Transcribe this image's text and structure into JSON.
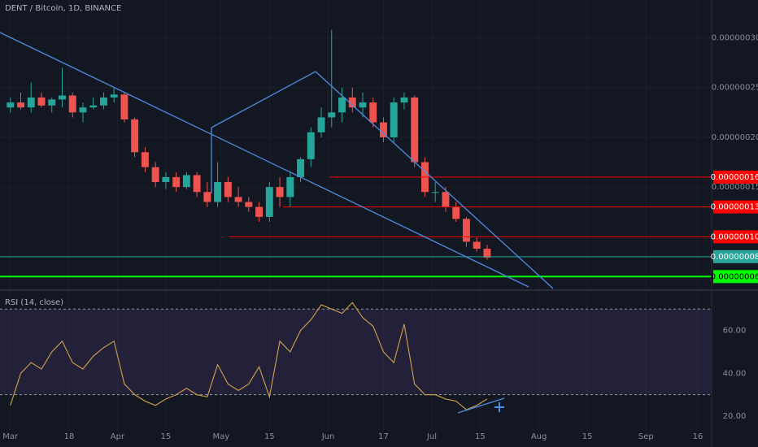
{
  "chart_data": [
    {
      "type": "candlestick",
      "title": "DENT / Bitcoin, 1D, BINANCE",
      "x": [
        "Mar 1",
        "Mar 4",
        "Mar 7",
        "Mar 10",
        "Mar 13",
        "Mar 16",
        "Mar 19",
        "Mar 22",
        "Mar 25",
        "Mar 28",
        "Mar 31",
        "Apr 3",
        "Apr 6",
        "Apr 9",
        "Apr 12",
        "Apr 15",
        "Apr 18",
        "Apr 21",
        "Apr 24",
        "Apr 27",
        "Apr 30",
        "May 3",
        "May 6",
        "May 9",
        "May 12",
        "May 15",
        "May 18",
        "May 21",
        "May 24",
        "May 27",
        "May 30",
        "Jun 2",
        "Jun 5",
        "Jun 8",
        "Jun 11",
        "Jun 14",
        "Jun 17",
        "Jun 20",
        "Jun 23",
        "Jun 26",
        "Jun 29",
        "Jul 2",
        "Jul 5",
        "Jul 8",
        "Jul 11",
        "Jul 14",
        "Jul 17"
      ],
      "open": [
        2.3e-07,
        2.35e-07,
        2.3e-07,
        2.4e-07,
        2.32e-07,
        2.38e-07,
        2.42e-07,
        2.25e-07,
        2.3e-07,
        2.32e-07,
        2.4e-07,
        2.43e-07,
        2.18e-07,
        1.85e-07,
        1.7e-07,
        1.55e-07,
        1.6e-07,
        1.5e-07,
        1.62e-07,
        1.45e-07,
        1.35e-07,
        1.55e-07,
        1.4e-07,
        1.35e-07,
        1.3e-07,
        1.2e-07,
        1.5e-07,
        1.4e-07,
        1.6e-07,
        1.78e-07,
        2.05e-07,
        2.2e-07,
        2.25e-07,
        2.4e-07,
        2.3e-07,
        2.35e-07,
        2.15e-07,
        2e-07,
        2.35e-07,
        2.4e-07,
        1.75e-07,
        1.45e-07,
        1.45e-07,
        1.3e-07,
        1.18e-07,
        9.5e-08,
        8.8e-08
      ],
      "high": [
        2.4e-07,
        2.45e-07,
        2.55e-07,
        2.45e-07,
        2.4e-07,
        2.7e-07,
        2.45e-07,
        2.35e-07,
        2.4e-07,
        2.45e-07,
        2.5e-07,
        2.45e-07,
        2.2e-07,
        1.9e-07,
        1.75e-07,
        1.65e-07,
        1.65e-07,
        1.65e-07,
        1.65e-07,
        1.55e-07,
        1.75e-07,
        1.6e-07,
        1.5e-07,
        1.4e-07,
        1.35e-07,
        1.55e-07,
        1.6e-07,
        1.65e-07,
        1.8e-07,
        2.1e-07,
        2.3e-07,
        3.08e-07,
        2.5e-07,
        2.5e-07,
        2.45e-07,
        2.4e-07,
        2.2e-07,
        2.4e-07,
        2.45e-07,
        2.42e-07,
        1.8e-07,
        1.55e-07,
        1.5e-07,
        1.35e-07,
        1.2e-07,
        1e-07,
        9.2e-08
      ],
      "low": [
        2.25e-07,
        2.28e-07,
        2.25e-07,
        2.3e-07,
        2.25e-07,
        2.3e-07,
        2.2e-07,
        2.15e-07,
        2.28e-07,
        2.28e-07,
        2.35e-07,
        2.15e-07,
        1.8e-07,
        1.65e-07,
        1.5e-07,
        1.48e-07,
        1.45e-07,
        1.48e-07,
        1.4e-07,
        1.3e-07,
        1.3e-07,
        1.35e-07,
        1.3e-07,
        1.25e-07,
        1.15e-07,
        1.15e-07,
        1.3e-07,
        1.3e-07,
        1.55e-07,
        1.7e-07,
        2e-07,
        2.1e-07,
        2.15e-07,
        2.25e-07,
        2.2e-07,
        2.1e-07,
        1.95e-07,
        1.95e-07,
        2.28e-07,
        1.7e-07,
        1.4e-07,
        1.35e-07,
        1.25e-07,
        1.15e-07,
        9e-08,
        8.5e-08,
        7.7e-08
      ],
      "close": [
        2.35e-07,
        2.3e-07,
        2.4e-07,
        2.32e-07,
        2.38e-07,
        2.42e-07,
        2.25e-07,
        2.3e-07,
        2.32e-07,
        2.4e-07,
        2.43e-07,
        2.18e-07,
        1.85e-07,
        1.7e-07,
        1.55e-07,
        1.6e-07,
        1.5e-07,
        1.62e-07,
        1.45e-07,
        1.35e-07,
        1.55e-07,
        1.4e-07,
        1.35e-07,
        1.3e-07,
        1.2e-07,
        1.5e-07,
        1.4e-07,
        1.6e-07,
        1.78e-07,
        2.05e-07,
        2.2e-07,
        2.25e-07,
        2.4e-07,
        2.3e-07,
        2.35e-07,
        2.15e-07,
        2e-07,
        2.35e-07,
        2.4e-07,
        1.75e-07,
        1.45e-07,
        1.45e-07,
        1.3e-07,
        1.18e-07,
        9.5e-08,
        8.8e-08,
        7.9e-08
      ],
      "up_color": "#26a69a",
      "down_color": "#ef5350",
      "xlim": [
        "Feb 26",
        "Sep 20"
      ],
      "ylim": [
        4.8e-08,
        3.38e-07
      ],
      "yticks": [
        {
          "value": 1.5e-07,
          "label": "0.00000015"
        },
        {
          "value": 2e-07,
          "label": "0.00000020"
        },
        {
          "value": 2.5e-07,
          "label": "0.00000025"
        },
        {
          "value": 3e-07,
          "label": "0.00000030"
        }
      ],
      "levels": [
        {
          "value": 1.6e-07,
          "label": "0.00000016",
          "color": "#ff0000"
        },
        {
          "value": 1.3e-07,
          "label": "0.00000013",
          "color": "#ff0000"
        },
        {
          "value": 1e-07,
          "label": "0.00000010",
          "color": "#ff0000"
        },
        {
          "value": 8e-08,
          "label": "0.00000008",
          "color": "#26a69a"
        },
        {
          "value": 6e-08,
          "label": "0.00000006",
          "color": "#00ff00"
        }
      ]
    },
    {
      "type": "line",
      "title": "RSI (14, close)",
      "x": [
        "Mar 1",
        "Mar 4",
        "Mar 7",
        "Mar 10",
        "Mar 13",
        "Mar 16",
        "Mar 19",
        "Mar 22",
        "Mar 25",
        "Mar 28",
        "Mar 31",
        "Apr 3",
        "Apr 6",
        "Apr 9",
        "Apr 12",
        "Apr 15",
        "Apr 18",
        "Apr 21",
        "Apr 24",
        "Apr 27",
        "Apr 30",
        "May 3",
        "May 6",
        "May 9",
        "May 12",
        "May 15",
        "May 18",
        "May 21",
        "May 24",
        "May 27",
        "May 30",
        "Jun 2",
        "Jun 5",
        "Jun 8",
        "Jun 11",
        "Jun 14",
        "Jun 17",
        "Jun 20",
        "Jun 23",
        "Jun 26",
        "Jun 29",
        "Jul 2",
        "Jul 5",
        "Jul 8",
        "Jul 11",
        "Jul 14",
        "Jul 17"
      ],
      "values": [
        25,
        40,
        45,
        42,
        50,
        55,
        45,
        42,
        48,
        52,
        55,
        35,
        30,
        27,
        25,
        28,
        30,
        33,
        30,
        29,
        44,
        35,
        32,
        35,
        43,
        29,
        55,
        50,
        60,
        65,
        72,
        70,
        68,
        73,
        66,
        62,
        50,
        45,
        63,
        35,
        30,
        30,
        28,
        27,
        23,
        25,
        28
      ],
      "color": "#c49a4a",
      "xlim": [
        "Feb 26",
        "Sep 20"
      ],
      "xticks": [
        {
          "value": "Mar 1",
          "label": "Mar"
        },
        {
          "value": "Mar 18",
          "label": "18"
        },
        {
          "value": "Apr 1",
          "label": "Apr"
        },
        {
          "value": "Apr 15",
          "label": "15"
        },
        {
          "value": "May 1",
          "label": "May"
        },
        {
          "value": "May 15",
          "label": "15"
        },
        {
          "value": "Jun 1",
          "label": "Jun"
        },
        {
          "value": "Jun 17",
          "label": "17"
        },
        {
          "value": "Jul 1",
          "label": "Jul"
        },
        {
          "value": "Jul 15",
          "label": "15"
        },
        {
          "value": "Aug 1",
          "label": "Aug"
        },
        {
          "value": "Aug 15",
          "label": "15"
        },
        {
          "value": "Sep 1",
          "label": "Sep"
        },
        {
          "value": "Sep 16",
          "label": "16"
        }
      ],
      "ylim": [
        16.2,
        77.7
      ],
      "yticks": [
        {
          "value": 20,
          "label": "20.00"
        },
        {
          "value": 40,
          "label": "40.00"
        },
        {
          "value": 60,
          "label": "60.00"
        }
      ],
      "bands": [
        30,
        70
      ]
    }
  ]
}
